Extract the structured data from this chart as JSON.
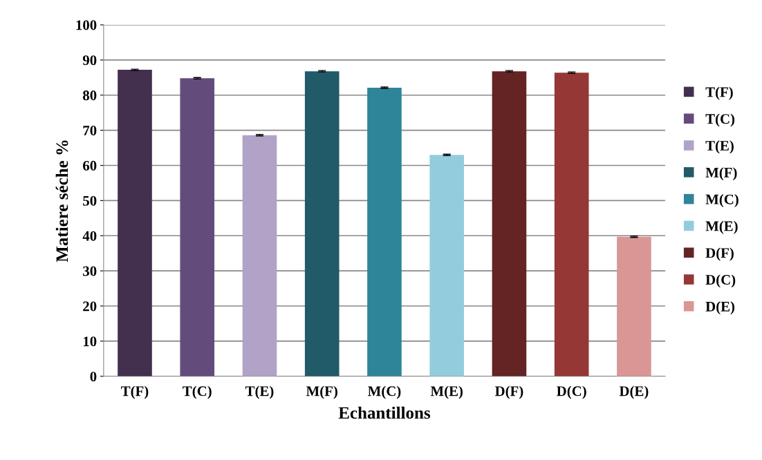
{
  "chart_data": {
    "type": "bar",
    "xlabel": "Echantillons",
    "ylabel": "Matiere séche %",
    "categories": [
      "T(F)",
      "T(C)",
      "T(E)",
      "M(F)",
      "M(C)",
      "M(E)",
      "D(F)",
      "D(C)",
      "D(E)"
    ],
    "stacked": true,
    "series": [
      {
        "name": "T(F)",
        "color": "#43304f",
        "values": [
          87.2,
          null,
          null,
          null,
          null,
          null,
          null,
          null,
          null
        ],
        "errors": [
          0.2,
          null,
          null,
          null,
          null,
          null,
          null,
          null,
          null
        ]
      },
      {
        "name": "T(C)",
        "color": "#634c7c",
        "values": [
          null,
          84.8,
          null,
          null,
          null,
          null,
          null,
          null,
          null
        ],
        "errors": [
          null,
          0.2,
          null,
          null,
          null,
          null,
          null,
          null,
          null
        ]
      },
      {
        "name": "T(E)",
        "color": "#b1a2c8",
        "values": [
          null,
          null,
          68.6,
          null,
          null,
          null,
          null,
          null,
          null
        ],
        "errors": [
          null,
          null,
          0.2,
          null,
          null,
          null,
          null,
          null,
          null
        ]
      },
      {
        "name": "M(F)",
        "color": "#215a68",
        "values": [
          null,
          null,
          null,
          86.8,
          null,
          null,
          null,
          null,
          null
        ],
        "errors": [
          null,
          null,
          null,
          0.2,
          null,
          null,
          null,
          null,
          null
        ]
      },
      {
        "name": "M(C)",
        "color": "#2e8599",
        "values": [
          null,
          null,
          null,
          null,
          82.1,
          null,
          null,
          null,
          null
        ],
        "errors": [
          null,
          null,
          null,
          null,
          0.2,
          null,
          null,
          null,
          null
        ]
      },
      {
        "name": "M(E)",
        "color": "#93cddd",
        "values": [
          null,
          null,
          null,
          null,
          null,
          63.0,
          null,
          null,
          null
        ],
        "errors": [
          null,
          null,
          null,
          null,
          null,
          0.2,
          null,
          null,
          null
        ]
      },
      {
        "name": "D(F)",
        "color": "#632423",
        "values": [
          null,
          null,
          null,
          null,
          null,
          null,
          86.8,
          null,
          null
        ],
        "errors": [
          null,
          null,
          null,
          null,
          null,
          null,
          0.2,
          null,
          null
        ]
      },
      {
        "name": "D(C)",
        "color": "#953735",
        "values": [
          null,
          null,
          null,
          null,
          null,
          null,
          null,
          86.4,
          null
        ],
        "errors": [
          null,
          null,
          null,
          null,
          null,
          null,
          null,
          0.2,
          null
        ]
      },
      {
        "name": "D(E)",
        "color": "#d99694",
        "values": [
          null,
          null,
          null,
          null,
          null,
          null,
          null,
          null,
          39.7
        ],
        "errors": [
          null,
          null,
          null,
          null,
          null,
          null,
          null,
          null,
          0.2
        ]
      }
    ],
    "ylim": [
      0,
      100
    ],
    "yticks": [
      0,
      10,
      20,
      30,
      40,
      50,
      60,
      70,
      80,
      90,
      100
    ],
    "grid": "y",
    "legend": "right"
  }
}
